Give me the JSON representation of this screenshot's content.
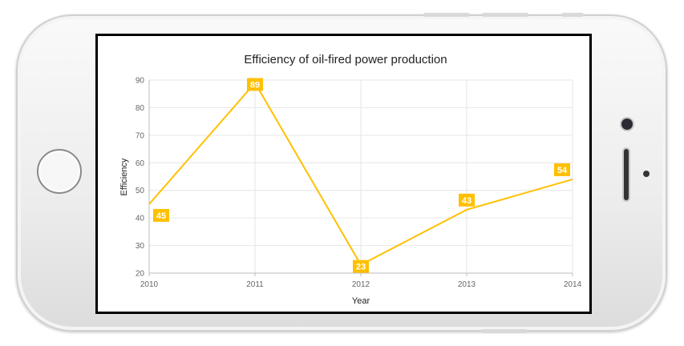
{
  "colors": {
    "series": "#FFC000",
    "grid": "#e6e6e6",
    "axis": "#bdbdbd"
  },
  "chart_data": {
    "type": "line",
    "title": "Efficiency of oil-fired power production",
    "xlabel": "Year",
    "ylabel": "Efficiency",
    "x": [
      2010,
      2011,
      2012,
      2013,
      2014
    ],
    "x_tick_labels": [
      "2010",
      "2011",
      "2012",
      "2013",
      "2014"
    ],
    "y_tick_labels": [
      "20",
      "30",
      "40",
      "50",
      "60",
      "70",
      "80",
      "90"
    ],
    "xlim": [
      2010,
      2014
    ],
    "ylim": [
      20,
      90
    ],
    "y_ticks": [
      20,
      30,
      40,
      50,
      60,
      70,
      80,
      90
    ],
    "grid": true,
    "data_labels": true,
    "series": [
      {
        "values": [
          45,
          89,
          23,
          43,
          54
        ],
        "labels": [
          "45",
          "89",
          "23",
          "43",
          "54"
        ]
      }
    ]
  }
}
